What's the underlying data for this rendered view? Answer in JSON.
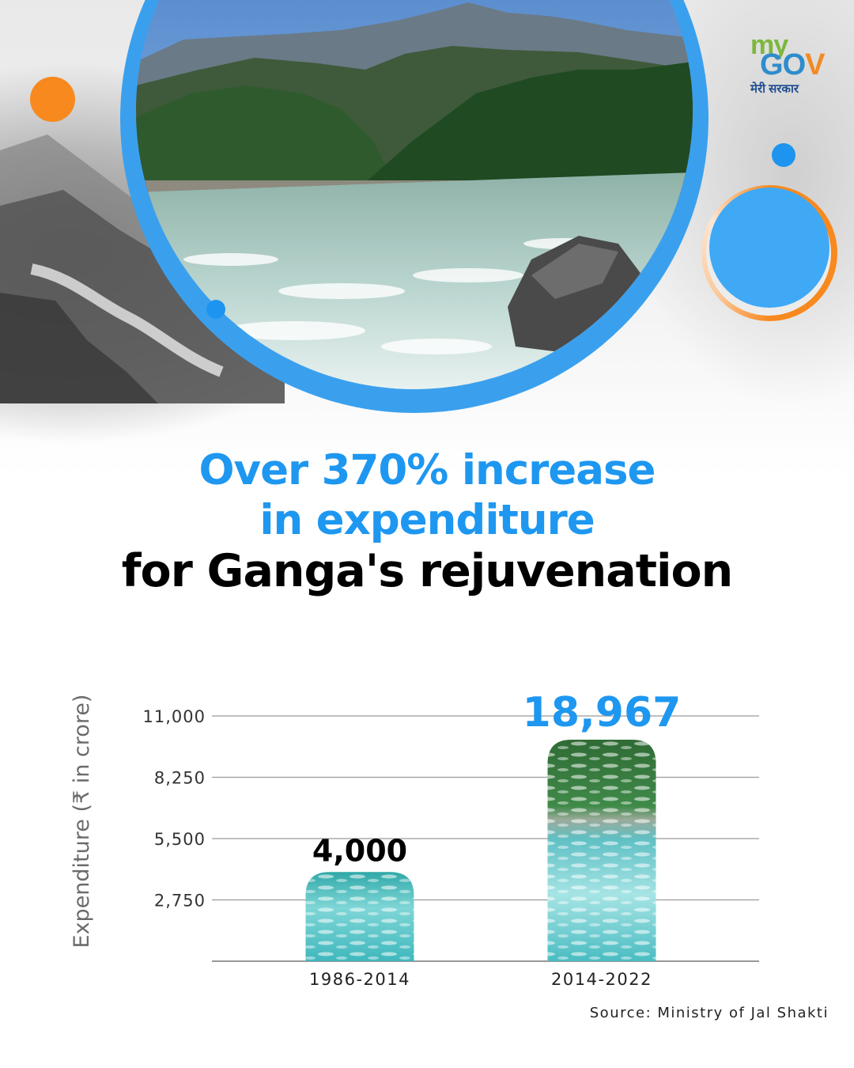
{
  "logo": {
    "my": "my",
    "gov_g": "G",
    "gov_o": "O",
    "gov_v": "V",
    "hindi": "मेरी सरकार"
  },
  "headline": {
    "line1": "Over 370% increase",
    "line2": "in expenditure",
    "line3": "for Ganga's rejuvenation"
  },
  "colors": {
    "blue": "#1e97f0",
    "orange": "#f7891f",
    "black": "#000000",
    "water": "#4fc3c7"
  },
  "chart_data": {
    "type": "bar",
    "categories": [
      "1986-2014",
      "2014-2022"
    ],
    "values": [
      4000,
      18967
    ],
    "value_labels": [
      "4,000",
      "18,967"
    ],
    "ylabel": "Expenditure (₹ in crore)",
    "yticks": [
      2750,
      5500,
      8250,
      11000
    ],
    "ytick_labels": [
      "2,750",
      "5,500",
      "8,250",
      "11,000"
    ],
    "ylim": [
      0,
      11000
    ],
    "grid": true,
    "note": "second bar is drawn clipped at the top of the axis"
  },
  "source": "Source: Ministry of Jal Shakti"
}
